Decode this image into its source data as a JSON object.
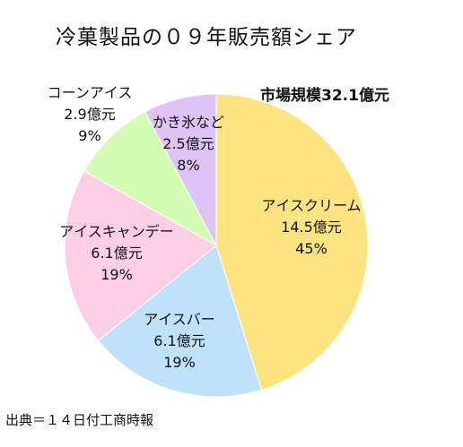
{
  "title": "冷菓製品の０９年販売額シェア",
  "market_size": "市場規模32.1億元",
  "source": "出典＝１４日付工商時報",
  "chart_data": {
    "type": "pie",
    "title": "冷菓製品の０９年販売額シェア",
    "total_label": "市場規模32.1億元",
    "slices": [
      {
        "name": "アイスクリーム",
        "amount": 14.5,
        "amount_label": "14.5億元",
        "percent": 45,
        "percent_label": "45%",
        "color": "#fee480"
      },
      {
        "name": "アイスバー",
        "amount": 6.1,
        "amount_label": "6.1億元",
        "percent": 19,
        "percent_label": "19%",
        "color": "#bfe2fa"
      },
      {
        "name": "アイスキャンデー",
        "amount": 6.1,
        "amount_label": "6.1億元",
        "percent": 19,
        "percent_label": "19%",
        "color": "#fdcfe6"
      },
      {
        "name": "コーンアイス",
        "amount": 2.9,
        "amount_label": "2.9億元",
        "percent": 9,
        "percent_label": "9%",
        "color": "#d2fdb2"
      },
      {
        "name": "かき氷など",
        "amount": 2.5,
        "amount_label": "2.5億元",
        "percent": 8,
        "percent_label": "8%",
        "color": "#dec4f6"
      }
    ]
  }
}
